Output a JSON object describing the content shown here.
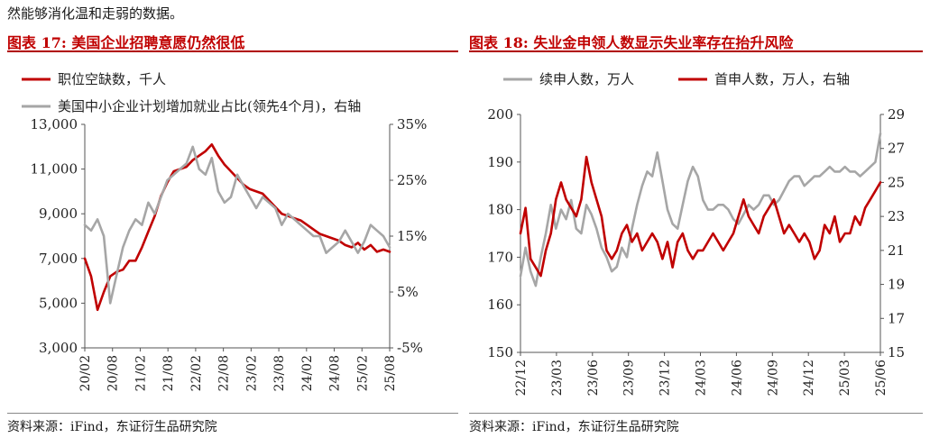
{
  "intro_text": "然能够消化温和走弱的数据。",
  "charts": [
    {
      "fig_label": "图表 17:",
      "fig_title": "美国企业招聘意愿仍然很低",
      "source": "资料来源：iFind，东证衍生品研究院"
    },
    {
      "fig_label": "图表 18:",
      "fig_title": "失业金申领人数显示失业率存在抬升风险",
      "source": "资料来源：iFind，东证衍生品研究院"
    }
  ],
  "chart_data": [
    {
      "type": "line",
      "title": "美国企业招聘意愿仍然很低",
      "legend_position": "top-left",
      "x_ticks": [
        "20/02",
        "20/08",
        "21/02",
        "21/08",
        "22/02",
        "22/08",
        "23/02",
        "23/08",
        "24/02",
        "24/08",
        "25/02",
        "25/08"
      ],
      "y_left": {
        "lim": [
          3000,
          13000
        ],
        "ticks": [
          "3,000",
          "5,000",
          "7,000",
          "9,000",
          "11,000",
          "13,000"
        ]
      },
      "y_right": {
        "lim": [
          -5,
          35
        ],
        "ticks": [
          "-5%",
          "5%",
          "15%",
          "25%",
          "35%"
        ]
      },
      "series": [
        {
          "name": "职位空缺数，千人",
          "color": "#c00000",
          "axis": "left",
          "values": [
            [
              0,
              7000
            ],
            [
              1,
              6200
            ],
            [
              2,
              4700
            ],
            [
              3,
              5500
            ],
            [
              4,
              6200
            ],
            [
              5,
              6400
            ],
            [
              6,
              6500
            ],
            [
              7,
              6900
            ],
            [
              8,
              6900
            ],
            [
              9,
              7500
            ],
            [
              10,
              8200
            ],
            [
              11,
              8900
            ],
            [
              12,
              9800
            ],
            [
              13,
              10400
            ],
            [
              14,
              10900
            ],
            [
              15,
              11000
            ],
            [
              16,
              11100
            ],
            [
              17,
              11400
            ],
            [
              18,
              11600
            ],
            [
              19,
              11800
            ],
            [
              20,
              12100
            ],
            [
              21,
              11600
            ],
            [
              22,
              11200
            ],
            [
              23,
              10900
            ],
            [
              24,
              10600
            ],
            [
              25,
              10300
            ],
            [
              26,
              10100
            ],
            [
              27,
              10000
            ],
            [
              28,
              9900
            ],
            [
              29,
              9600
            ],
            [
              30,
              9300
            ],
            [
              31,
              9000
            ],
            [
              32,
              8900
            ],
            [
              33,
              8800
            ],
            [
              34,
              8700
            ],
            [
              35,
              8500
            ],
            [
              36,
              8300
            ],
            [
              37,
              8100
            ],
            [
              38,
              8000
            ],
            [
              39,
              7900
            ],
            [
              40,
              7800
            ],
            [
              41,
              7600
            ],
            [
              42,
              7500
            ],
            [
              43,
              7700
            ],
            [
              44,
              7400
            ],
            [
              45,
              7600
            ],
            [
              46,
              7300
            ],
            [
              47,
              7400
            ],
            [
              48,
              7300
            ]
          ]
        },
        {
          "name": "美国中小企业计划增加就业占比(领先4个月)，右轴",
          "color": "#a6a6a6",
          "axis": "right",
          "values": [
            [
              0,
              17
            ],
            [
              1,
              16
            ],
            [
              2,
              18
            ],
            [
              3,
              15
            ],
            [
              4,
              3
            ],
            [
              5,
              8
            ],
            [
              6,
              13
            ],
            [
              7,
              16
            ],
            [
              8,
              18
            ],
            [
              9,
              17
            ],
            [
              10,
              21
            ],
            [
              11,
              19
            ],
            [
              12,
              22
            ],
            [
              13,
              25
            ],
            [
              14,
              26
            ],
            [
              15,
              27
            ],
            [
              16,
              28
            ],
            [
              17,
              31
            ],
            [
              18,
              27
            ],
            [
              19,
              26
            ],
            [
              20,
              29
            ],
            [
              21,
              23
            ],
            [
              22,
              21
            ],
            [
              23,
              22
            ],
            [
              24,
              26
            ],
            [
              25,
              24
            ],
            [
              26,
              22
            ],
            [
              27,
              20
            ],
            [
              28,
              22
            ],
            [
              29,
              21
            ],
            [
              30,
              20
            ],
            [
              31,
              17
            ],
            [
              32,
              19
            ],
            [
              33,
              18
            ],
            [
              34,
              17
            ],
            [
              35,
              16
            ],
            [
              36,
              15
            ],
            [
              37,
              15
            ],
            [
              38,
              12
            ],
            [
              39,
              13
            ],
            [
              40,
              14
            ],
            [
              41,
              16
            ],
            [
              42,
              14
            ],
            [
              43,
              12
            ],
            [
              44,
              14
            ],
            [
              45,
              17
            ],
            [
              46,
              16
            ],
            [
              47,
              15
            ],
            [
              48,
              13
            ]
          ]
        }
      ]
    },
    {
      "type": "line",
      "title": "失业金申领人数显示失业率存在抬升风险",
      "legend_position": "top",
      "x_ticks": [
        "22/12",
        "23/03",
        "23/06",
        "23/09",
        "23/12",
        "24/03",
        "24/06",
        "24/09",
        "24/12",
        "25/03",
        "25/06"
      ],
      "y_left": {
        "lim": [
          150,
          200
        ],
        "ticks": [
          "150",
          "160",
          "170",
          "180",
          "190",
          "200"
        ]
      },
      "y_right": {
        "lim": [
          15,
          29
        ],
        "ticks": [
          "15",
          "17",
          "19",
          "21",
          "23",
          "25",
          "27",
          "29"
        ]
      },
      "series": [
        {
          "name": "续申人数，万人",
          "color": "#a6a6a6",
          "axis": "left",
          "values": [
            [
              0,
              166
            ],
            [
              1,
              172
            ],
            [
              2,
              167
            ],
            [
              3,
              164
            ],
            [
              4,
              170
            ],
            [
              5,
              175
            ],
            [
              6,
              181
            ],
            [
              7,
              176
            ],
            [
              8,
              180
            ],
            [
              9,
              178
            ],
            [
              10,
              182
            ],
            [
              11,
              176
            ],
            [
              12,
              175
            ],
            [
              13,
              181
            ],
            [
              14,
              179
            ],
            [
              15,
              176
            ],
            [
              16,
              172
            ],
            [
              17,
              170
            ],
            [
              18,
              167
            ],
            [
              19,
              168
            ],
            [
              20,
              172
            ],
            [
              21,
              170
            ],
            [
              22,
              176
            ],
            [
              23,
              181
            ],
            [
              24,
              185
            ],
            [
              25,
              188
            ],
            [
              26,
              187
            ],
            [
              27,
              192
            ],
            [
              28,
              186
            ],
            [
              29,
              180
            ],
            [
              30,
              177
            ],
            [
              31,
              176
            ],
            [
              32,
              181
            ],
            [
              33,
              186
            ],
            [
              34,
              189
            ],
            [
              35,
              187
            ],
            [
              36,
              182
            ],
            [
              37,
              180
            ],
            [
              38,
              180
            ],
            [
              39,
              181
            ],
            [
              40,
              181
            ],
            [
              41,
              180
            ],
            [
              42,
              178
            ],
            [
              43,
              177
            ],
            [
              44,
              179
            ],
            [
              45,
              181
            ],
            [
              46,
              180
            ],
            [
              47,
              181
            ],
            [
              48,
              183
            ],
            [
              49,
              183
            ],
            [
              50,
              181
            ],
            [
              51,
              182
            ],
            [
              52,
              184
            ],
            [
              53,
              186
            ],
            [
              54,
              187
            ],
            [
              55,
              187
            ],
            [
              56,
              185
            ],
            [
              57,
              186
            ],
            [
              58,
              187
            ],
            [
              59,
              187
            ],
            [
              60,
              188
            ],
            [
              61,
              189
            ],
            [
              62,
              188
            ],
            [
              63,
              188
            ],
            [
              64,
              189
            ],
            [
              65,
              188
            ],
            [
              66,
              188
            ],
            [
              67,
              187
            ],
            [
              68,
              188
            ],
            [
              69,
              189
            ],
            [
              70,
              190
            ],
            [
              71,
              196
            ]
          ]
        },
        {
          "name": "首申人数，万人，右轴",
          "color": "#c00000",
          "axis": "right",
          "values": [
            [
              0,
              22
            ],
            [
              1,
              23.5
            ],
            [
              2,
              20.5
            ],
            [
              3,
              20
            ],
            [
              4,
              19.5
            ],
            [
              5,
              21
            ],
            [
              6,
              22
            ],
            [
              7,
              24
            ],
            [
              8,
              25
            ],
            [
              9,
              24
            ],
            [
              10,
              23.5
            ],
            [
              11,
              23
            ],
            [
              12,
              24
            ],
            [
              13,
              26.5
            ],
            [
              14,
              25
            ],
            [
              15,
              24
            ],
            [
              16,
              23
            ],
            [
              17,
              21
            ],
            [
              18,
              20.5
            ],
            [
              19,
              21
            ],
            [
              20,
              22
            ],
            [
              21,
              22.5
            ],
            [
              22,
              21.5
            ],
            [
              23,
              22
            ],
            [
              24,
              21
            ],
            [
              25,
              21.5
            ],
            [
              26,
              22
            ],
            [
              27,
              21.5
            ],
            [
              28,
              20.5
            ],
            [
              29,
              21.5
            ],
            [
              30,
              20
            ],
            [
              31,
              21.5
            ],
            [
              32,
              22
            ],
            [
              33,
              21
            ],
            [
              34,
              20.5
            ],
            [
              35,
              21
            ],
            [
              36,
              21
            ],
            [
              37,
              21.5
            ],
            [
              38,
              22
            ],
            [
              39,
              21.5
            ],
            [
              40,
              21
            ],
            [
              41,
              21.5
            ],
            [
              42,
              22
            ],
            [
              43,
              23
            ],
            [
              44,
              24
            ],
            [
              45,
              23
            ],
            [
              46,
              22.5
            ],
            [
              47,
              22
            ],
            [
              48,
              23
            ],
            [
              49,
              23.5
            ],
            [
              50,
              24
            ],
            [
              51,
              23
            ],
            [
              52,
              22
            ],
            [
              53,
              22.5
            ],
            [
              54,
              22
            ],
            [
              55,
              21.5
            ],
            [
              56,
              22
            ],
            [
              57,
              21.5
            ],
            [
              58,
              20.5
            ],
            [
              59,
              21
            ],
            [
              60,
              22.5
            ],
            [
              61,
              22
            ],
            [
              62,
              23
            ],
            [
              63,
              21.5
            ],
            [
              64,
              22
            ],
            [
              65,
              22
            ],
            [
              66,
              23
            ],
            [
              67,
              22.5
            ],
            [
              68,
              23.5
            ],
            [
              69,
              24
            ],
            [
              70,
              24.5
            ],
            [
              71,
              25
            ]
          ]
        }
      ]
    }
  ]
}
